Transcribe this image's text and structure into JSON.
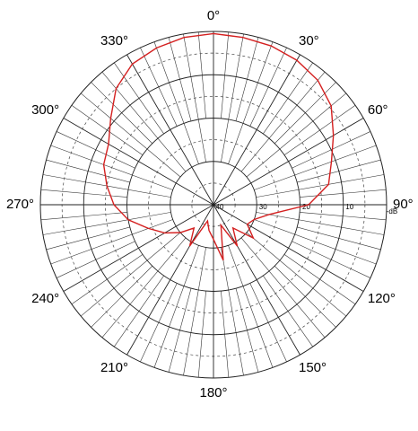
{
  "chart_data": {
    "type": "polar",
    "r_label": "-dB",
    "theta": [
      0,
      10,
      20,
      30,
      40,
      50,
      60,
      70,
      80,
      90,
      100,
      110,
      120,
      130,
      140,
      150,
      160,
      170,
      180,
      190,
      200,
      210,
      220,
      230,
      240,
      250,
      260,
      270,
      280,
      290,
      300,
      310,
      320,
      330,
      340,
      350
    ],
    "values": [
      0.5,
      0.8,
      1,
      1.5,
      2.5,
      4.5,
      8,
      11,
      13,
      18,
      27,
      30,
      31,
      28,
      33,
      29,
      35,
      27,
      32,
      34,
      36,
      29,
      33,
      30,
      27,
      24,
      20,
      17,
      15,
      13,
      12,
      9,
      5,
      2.5,
      1.5,
      0.8
    ],
    "color": "#d42020",
    "rlim": [
      0,
      40
    ],
    "rticks": [
      10,
      20,
      30,
      40
    ],
    "rminor": [
      5,
      15,
      25,
      35
    ],
    "thetaticks": [
      {
        "value": 0,
        "label": "0°"
      },
      {
        "value": 30,
        "label": "30°"
      },
      {
        "value": 60,
        "label": "60°"
      },
      {
        "value": 90,
        "label": "90°"
      },
      {
        "value": 120,
        "label": "120°"
      },
      {
        "value": 150,
        "label": "150°"
      },
      {
        "value": 180,
        "label": "180°"
      },
      {
        "value": 210,
        "label": "210°"
      },
      {
        "value": 240,
        "label": "240°"
      },
      {
        "value": 270,
        "label": "270°"
      },
      {
        "value": 300,
        "label": "300°"
      },
      {
        "value": 330,
        "label": "330°"
      }
    ]
  }
}
